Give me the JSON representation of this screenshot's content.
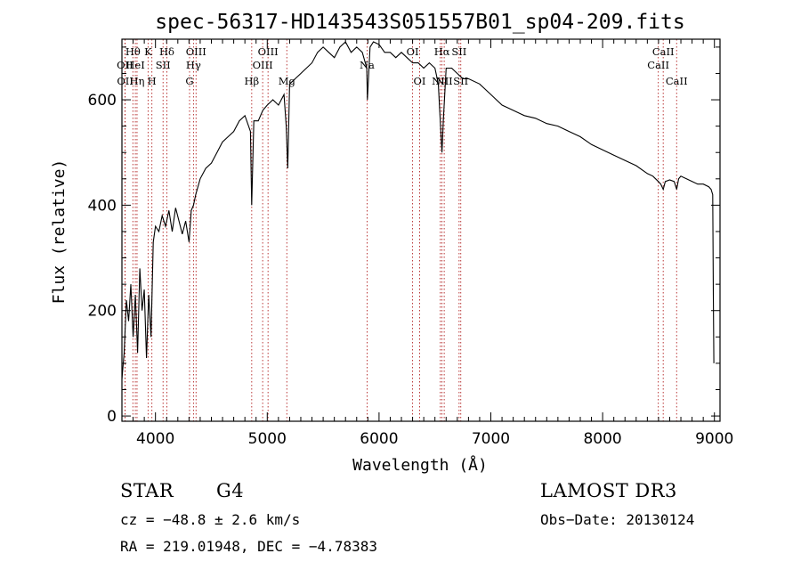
{
  "chart_data": {
    "type": "line",
    "title": "spec-56317-HD143543S051557B01_sp04-209.fits",
    "xlabel": "Wavelength (Å)",
    "ylabel": "Flux (relative)",
    "xlim": [
      3700,
      9050
    ],
    "ylim": [
      -10,
      715
    ],
    "xticks": [
      4000,
      5000,
      6000,
      7000,
      8000,
      9000
    ],
    "yticks": [
      0,
      200,
      400,
      600
    ],
    "grid": false,
    "series": [
      {
        "x": [
          3700,
          3720,
          3740,
          3760,
          3780,
          3800,
          3820,
          3840,
          3860,
          3880,
          3900,
          3920,
          3940,
          3960,
          3980,
          4000,
          4030,
          4060,
          4090,
          4120,
          4150,
          4180,
          4210,
          4240,
          4270,
          4300,
          4320,
          4340,
          4360,
          4400,
          4450,
          4500,
          4550,
          4600,
          4650,
          4700,
          4750,
          4800,
          4850,
          4861,
          4880,
          4920,
          4960,
          5000,
          5050,
          5100,
          5150,
          5170,
          5183,
          5200,
          5250,
          5300,
          5350,
          5400,
          5450,
          5500,
          5550,
          5600,
          5650,
          5700,
          5750,
          5800,
          5850,
          5890,
          5896,
          5920,
          5950,
          6000,
          6050,
          6100,
          6150,
          6200,
          6250,
          6300,
          6350,
          6400,
          6450,
          6500,
          6530,
          6550,
          6563,
          6575,
          6600,
          6650,
          6700,
          6750,
          6800,
          6900,
          7000,
          7100,
          7200,
          7300,
          7400,
          7500,
          7600,
          7700,
          7800,
          7900,
          8000,
          8100,
          8200,
          8300,
          8400,
          8450,
          8498,
          8520,
          8542,
          8560,
          8600,
          8640,
          8662,
          8680,
          8700,
          8750,
          8800,
          8850,
          8900,
          8950,
          8970,
          8985,
          8990,
          8995
        ],
        "y": [
          70,
          120,
          220,
          180,
          250,
          150,
          230,
          120,
          280,
          200,
          240,
          110,
          230,
          150,
          330,
          360,
          350,
          380,
          360,
          390,
          350,
          395,
          370,
          345,
          370,
          330,
          390,
          400,
          420,
          450,
          470,
          480,
          500,
          520,
          530,
          540,
          560,
          570,
          540,
          400,
          560,
          560,
          580,
          590,
          600,
          590,
          610,
          550,
          470,
          630,
          640,
          650,
          660,
          670,
          690,
          700,
          690,
          680,
          700,
          710,
          690,
          700,
          690,
          660,
          600,
          700,
          710,
          705,
          690,
          690,
          680,
          690,
          680,
          670,
          670,
          660,
          670,
          660,
          630,
          550,
          500,
          560,
          660,
          660,
          650,
          640,
          640,
          630,
          610,
          590,
          580,
          570,
          565,
          555,
          550,
          540,
          530,
          515,
          505,
          495,
          485,
          475,
          460,
          455,
          445,
          440,
          430,
          445,
          448,
          445,
          430,
          450,
          455,
          450,
          445,
          440,
          440,
          435,
          430,
          420,
          230,
          100
        ]
      }
    ],
    "lines": [
      {
        "name": "Hθ",
        "x": 3798,
        "row": 1
      },
      {
        "name": "OII",
        "x": 3727,
        "row": 2
      },
      {
        "name": "OII",
        "x": 3729,
        "row": 3
      },
      {
        "name": "HeI",
        "x": 3820,
        "row": 2
      },
      {
        "name": "Hη",
        "x": 3835,
        "row": 3
      },
      {
        "name": "K",
        "x": 3934,
        "row": 1
      },
      {
        "name": "H",
        "x": 3968,
        "row": 3
      },
      {
        "name": "SII",
        "x": 4068,
        "row": 2
      },
      {
        "name": "Hδ",
        "x": 4102,
        "row": 1
      },
      {
        "name": "OIII",
        "x": 4363,
        "row": 1
      },
      {
        "name": "Hγ",
        "x": 4340,
        "row": 2
      },
      {
        "name": "G",
        "x": 4305,
        "row": 3
      },
      {
        "name": "Hβ",
        "x": 4861,
        "row": 3
      },
      {
        "name": "OIII",
        "x": 4959,
        "row": 2
      },
      {
        "name": "OIII",
        "x": 5007,
        "row": 1
      },
      {
        "name": "Mg",
        "x": 5175,
        "row": 3
      },
      {
        "name": "Na",
        "x": 5893,
        "row": 2
      },
      {
        "name": "OI",
        "x": 6300,
        "row": 1
      },
      {
        "name": "OI",
        "x": 6363,
        "row": 3
      },
      {
        "name": "NII",
        "x": 6548,
        "row": 3
      },
      {
        "name": "Hα",
        "x": 6563,
        "row": 1
      },
      {
        "name": "NII",
        "x": 6583,
        "row": 3
      },
      {
        "name": "SII",
        "x": 6716,
        "row": 1
      },
      {
        "name": "SII",
        "x": 6731,
        "row": 3
      },
      {
        "name": "CaII",
        "x": 8498,
        "row": 2
      },
      {
        "name": "CaII",
        "x": 8542,
        "row": 1
      },
      {
        "name": "CaII",
        "x": 8662,
        "row": 3
      }
    ]
  },
  "info": {
    "object_class": "STAR",
    "subclass": "G4",
    "survey": "LAMOST DR3",
    "cz": "cz = −48.8 ± 2.6 km/s",
    "obs_date": "Obs−Date: 20130124",
    "coords": "RA = 219.01948, DEC =  −4.78383"
  }
}
